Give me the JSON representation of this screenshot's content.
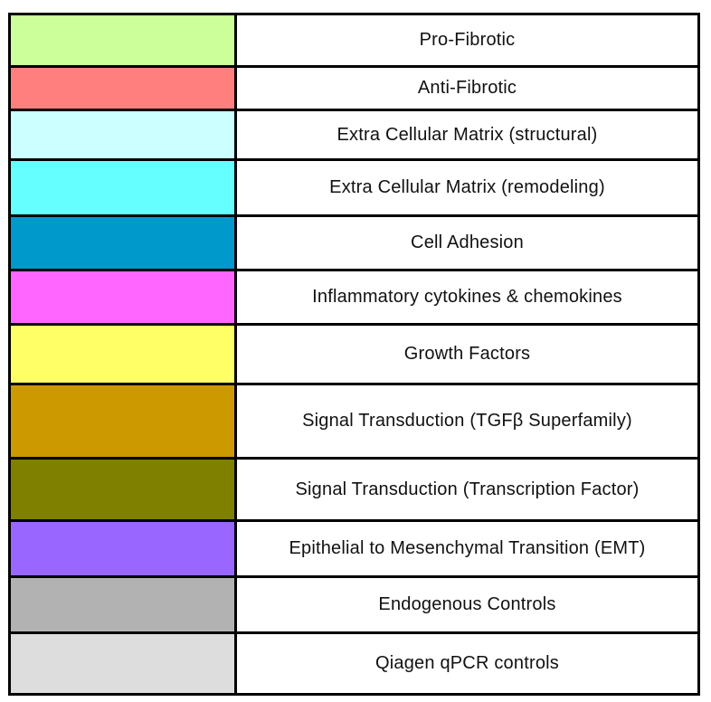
{
  "legend": {
    "rows": [
      {
        "label": "Pro-Fibrotic",
        "color": "#ccff99"
      },
      {
        "label": "Anti-Fibrotic",
        "color": "#ff7f7f"
      },
      {
        "label": "Extra Cellular Matrix (structural)",
        "color": "#ccffff"
      },
      {
        "label": "Extra Cellular Matrix (remodeling)",
        "color": "#66ffff"
      },
      {
        "label": "Cell Adhesion",
        "color": "#0099cc"
      },
      {
        "label": "Inflammatory cytokines & chemokines",
        "color": "#ff66ff"
      },
      {
        "label": "Growth Factors",
        "color": "#ffff66"
      },
      {
        "label": "Signal Transduction (TGFβ Superfamily)",
        "color": "#cc9900"
      },
      {
        "label": "Signal Transduction (Transcription Factor)",
        "color": "#808000"
      },
      {
        "label": "Epithelial to Mesenchymal Transition (EMT)",
        "color": "#9966ff"
      },
      {
        "label": "Endogenous Controls",
        "color": "#b2b2b2"
      },
      {
        "label": "Qiagen qPCR controls",
        "color": "#dddddd"
      }
    ]
  }
}
